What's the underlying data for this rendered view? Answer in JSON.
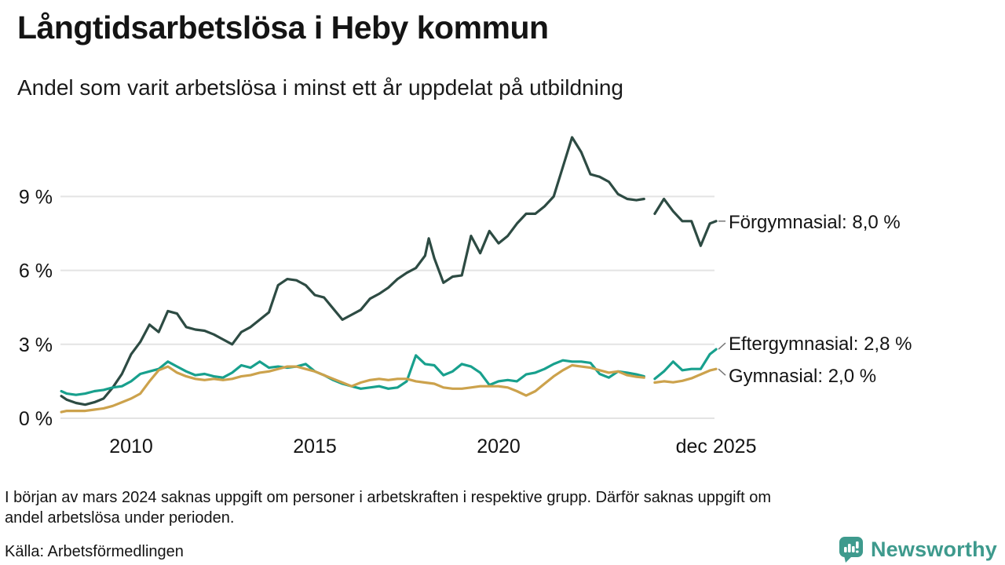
{
  "header": {
    "title": "Långtidsarbetslösa i Heby kommun",
    "subtitle": "Andel som varit arbetslösa i minst ett år uppdelat på utbildning"
  },
  "chart_data": {
    "type": "line",
    "title": "Långtidsarbetslösa i Heby kommun",
    "subtitle": "Andel som varit arbetslösa i minst ett år uppdelat på utbildning",
    "x_unit": "decimal_year",
    "xlim": [
      2008.0,
      2026.0
    ],
    "ylim": [
      0,
      12
    ],
    "grid": "horizontal",
    "legend_position": "right-end-labels",
    "y_ticks": [
      {
        "v": 0,
        "label": "0 %"
      },
      {
        "v": 3,
        "label": "3 %"
      },
      {
        "v": 6,
        "label": "6 %"
      },
      {
        "v": 9,
        "label": "9 %"
      }
    ],
    "x_ticks": [
      {
        "t": 2010,
        "label": "2010"
      },
      {
        "t": 2015,
        "label": "2015"
      },
      {
        "t": 2020,
        "label": "2020"
      },
      {
        "t": 2025.92,
        "label": "dec 2025"
      }
    ],
    "data_gap_note": "värden saknas kring början av 2024 (null-punkter)",
    "series": [
      {
        "name": "Förgymnasial",
        "end_label": "Förgymnasial: 8,0 %",
        "end_value_pct": 8.0,
        "color": "#2d4b43",
        "points": [
          [
            2008.1,
            0.9
          ],
          [
            2008.25,
            0.75
          ],
          [
            2008.5,
            0.62
          ],
          [
            2008.75,
            0.55
          ],
          [
            2009,
            0.65
          ],
          [
            2009.25,
            0.8
          ],
          [
            2009.5,
            1.25
          ],
          [
            2009.75,
            1.8
          ],
          [
            2010,
            2.6
          ],
          [
            2010.25,
            3.1
          ],
          [
            2010.5,
            3.8
          ],
          [
            2010.75,
            3.5
          ],
          [
            2011,
            4.35
          ],
          [
            2011.25,
            4.25
          ],
          [
            2011.5,
            3.7
          ],
          [
            2011.75,
            3.6
          ],
          [
            2012,
            3.55
          ],
          [
            2012.25,
            3.4
          ],
          [
            2012.5,
            3.2
          ],
          [
            2012.75,
            3.0
          ],
          [
            2013,
            3.5
          ],
          [
            2013.25,
            3.7
          ],
          [
            2013.5,
            4.0
          ],
          [
            2013.75,
            4.3
          ],
          [
            2014,
            5.4
          ],
          [
            2014.25,
            5.65
          ],
          [
            2014.5,
            5.6
          ],
          [
            2014.75,
            5.4
          ],
          [
            2015,
            5.0
          ],
          [
            2015.25,
            4.9
          ],
          [
            2015.5,
            4.45
          ],
          [
            2015.75,
            4.0
          ],
          [
            2016,
            4.2
          ],
          [
            2016.25,
            4.4
          ],
          [
            2016.5,
            4.85
          ],
          [
            2016.75,
            5.05
          ],
          [
            2017,
            5.3
          ],
          [
            2017.25,
            5.65
          ],
          [
            2017.5,
            5.9
          ],
          [
            2017.75,
            6.1
          ],
          [
            2018,
            6.6
          ],
          [
            2018.1,
            7.3
          ],
          [
            2018.25,
            6.5
          ],
          [
            2018.5,
            5.5
          ],
          [
            2018.75,
            5.75
          ],
          [
            2019,
            5.8
          ],
          [
            2019.25,
            7.4
          ],
          [
            2019.5,
            6.7
          ],
          [
            2019.75,
            7.6
          ],
          [
            2020,
            7.1
          ],
          [
            2020.25,
            7.4
          ],
          [
            2020.5,
            7.9
          ],
          [
            2020.75,
            8.3
          ],
          [
            2021,
            8.3
          ],
          [
            2021.25,
            8.6
          ],
          [
            2021.5,
            9.0
          ],
          [
            2021.75,
            10.2
          ],
          [
            2022,
            11.4
          ],
          [
            2022.25,
            10.8
          ],
          [
            2022.5,
            9.9
          ],
          [
            2022.75,
            9.8
          ],
          [
            2023,
            9.6
          ],
          [
            2023.25,
            9.1
          ],
          [
            2023.5,
            8.9
          ],
          [
            2023.75,
            8.85
          ],
          [
            2023.96,
            8.9
          ],
          [
            2024,
            null
          ],
          [
            2024.25,
            8.3
          ],
          [
            2024.5,
            8.9
          ],
          [
            2024.75,
            8.4
          ],
          [
            2025,
            8.0
          ],
          [
            2025.25,
            8.0
          ],
          [
            2025.5,
            7.0
          ],
          [
            2025.75,
            7.9
          ],
          [
            2025.92,
            8.0
          ]
        ]
      },
      {
        "name": "Eftergymnasial",
        "end_label": "Eftergymnasial: 2,8 %",
        "end_value_pct": 2.8,
        "color": "#18a08d",
        "points": [
          [
            2008.1,
            1.1
          ],
          [
            2008.25,
            1.0
          ],
          [
            2008.5,
            0.95
          ],
          [
            2008.75,
            1.0
          ],
          [
            2009,
            1.1
          ],
          [
            2009.25,
            1.15
          ],
          [
            2009.5,
            1.25
          ],
          [
            2009.75,
            1.3
          ],
          [
            2010,
            1.5
          ],
          [
            2010.25,
            1.8
          ],
          [
            2010.5,
            1.9
          ],
          [
            2010.75,
            2.0
          ],
          [
            2011,
            2.3
          ],
          [
            2011.25,
            2.1
          ],
          [
            2011.5,
            1.9
          ],
          [
            2011.75,
            1.75
          ],
          [
            2012,
            1.8
          ],
          [
            2012.25,
            1.7
          ],
          [
            2012.5,
            1.65
          ],
          [
            2012.75,
            1.85
          ],
          [
            2013,
            2.15
          ],
          [
            2013.25,
            2.05
          ],
          [
            2013.5,
            2.3
          ],
          [
            2013.75,
            2.05
          ],
          [
            2014,
            2.1
          ],
          [
            2014.25,
            2.05
          ],
          [
            2014.5,
            2.1
          ],
          [
            2014.75,
            2.2
          ],
          [
            2015,
            1.9
          ],
          [
            2015.25,
            1.75
          ],
          [
            2015.5,
            1.55
          ],
          [
            2015.75,
            1.4
          ],
          [
            2016,
            1.3
          ],
          [
            2016.25,
            1.2
          ],
          [
            2016.5,
            1.25
          ],
          [
            2016.75,
            1.3
          ],
          [
            2017,
            1.2
          ],
          [
            2017.25,
            1.25
          ],
          [
            2017.5,
            1.5
          ],
          [
            2017.75,
            2.55
          ],
          [
            2018,
            2.2
          ],
          [
            2018.25,
            2.15
          ],
          [
            2018.5,
            1.75
          ],
          [
            2018.75,
            1.9
          ],
          [
            2019,
            2.2
          ],
          [
            2019.25,
            2.1
          ],
          [
            2019.5,
            1.85
          ],
          [
            2019.75,
            1.35
          ],
          [
            2020,
            1.5
          ],
          [
            2020.25,
            1.55
          ],
          [
            2020.5,
            1.5
          ],
          [
            2020.75,
            1.78
          ],
          [
            2021,
            1.85
          ],
          [
            2021.25,
            2.0
          ],
          [
            2021.5,
            2.2
          ],
          [
            2021.75,
            2.35
          ],
          [
            2022,
            2.3
          ],
          [
            2022.25,
            2.3
          ],
          [
            2022.5,
            2.25
          ],
          [
            2022.75,
            1.8
          ],
          [
            2023,
            1.65
          ],
          [
            2023.25,
            1.9
          ],
          [
            2023.5,
            1.85
          ],
          [
            2023.75,
            1.78
          ],
          [
            2023.96,
            1.7
          ],
          [
            2024,
            null
          ],
          [
            2024.25,
            1.6
          ],
          [
            2024.5,
            1.9
          ],
          [
            2024.75,
            2.3
          ],
          [
            2025,
            1.95
          ],
          [
            2025.25,
            2.0
          ],
          [
            2025.5,
            2.0
          ],
          [
            2025.75,
            2.6
          ],
          [
            2025.92,
            2.8
          ]
        ]
      },
      {
        "name": "Gymnasial",
        "end_label": "Gymnasial: 2,0 %",
        "end_value_pct": 2.0,
        "color": "#cca24c",
        "points": [
          [
            2008.1,
            0.25
          ],
          [
            2008.25,
            0.3
          ],
          [
            2008.5,
            0.3
          ],
          [
            2008.75,
            0.3
          ],
          [
            2009,
            0.35
          ],
          [
            2009.25,
            0.4
          ],
          [
            2009.5,
            0.5
          ],
          [
            2009.75,
            0.65
          ],
          [
            2010,
            0.8
          ],
          [
            2010.25,
            1.0
          ],
          [
            2010.5,
            1.5
          ],
          [
            2010.75,
            1.95
          ],
          [
            2011,
            2.1
          ],
          [
            2011.25,
            1.85
          ],
          [
            2011.5,
            1.7
          ],
          [
            2011.75,
            1.6
          ],
          [
            2012,
            1.55
          ],
          [
            2012.25,
            1.6
          ],
          [
            2012.5,
            1.55
          ],
          [
            2012.75,
            1.6
          ],
          [
            2013,
            1.7
          ],
          [
            2013.25,
            1.75
          ],
          [
            2013.5,
            1.85
          ],
          [
            2013.75,
            1.9
          ],
          [
            2014,
            2.0
          ],
          [
            2014.25,
            2.1
          ],
          [
            2014.5,
            2.1
          ],
          [
            2014.75,
            2.0
          ],
          [
            2015,
            1.9
          ],
          [
            2015.25,
            1.75
          ],
          [
            2015.5,
            1.6
          ],
          [
            2015.75,
            1.45
          ],
          [
            2016,
            1.3
          ],
          [
            2016.25,
            1.45
          ],
          [
            2016.5,
            1.55
          ],
          [
            2016.75,
            1.6
          ],
          [
            2017,
            1.55
          ],
          [
            2017.25,
            1.6
          ],
          [
            2017.5,
            1.6
          ],
          [
            2017.75,
            1.5
          ],
          [
            2018,
            1.45
          ],
          [
            2018.25,
            1.4
          ],
          [
            2018.5,
            1.25
          ],
          [
            2018.75,
            1.2
          ],
          [
            2019,
            1.2
          ],
          [
            2019.25,
            1.25
          ],
          [
            2019.5,
            1.3
          ],
          [
            2019.75,
            1.3
          ],
          [
            2020,
            1.3
          ],
          [
            2020.25,
            1.25
          ],
          [
            2020.5,
            1.1
          ],
          [
            2020.75,
            0.92
          ],
          [
            2021,
            1.1
          ],
          [
            2021.25,
            1.4
          ],
          [
            2021.5,
            1.7
          ],
          [
            2021.75,
            1.95
          ],
          [
            2022,
            2.15
          ],
          [
            2022.25,
            2.1
          ],
          [
            2022.5,
            2.05
          ],
          [
            2022.75,
            1.95
          ],
          [
            2023,
            1.85
          ],
          [
            2023.25,
            1.9
          ],
          [
            2023.5,
            1.75
          ],
          [
            2023.75,
            1.68
          ],
          [
            2023.96,
            1.65
          ],
          [
            2024,
            null
          ],
          [
            2024.25,
            1.45
          ],
          [
            2024.5,
            1.5
          ],
          [
            2024.75,
            1.46
          ],
          [
            2025,
            1.52
          ],
          [
            2025.25,
            1.62
          ],
          [
            2025.5,
            1.78
          ],
          [
            2025.75,
            1.94
          ],
          [
            2025.92,
            2.0
          ]
        ]
      }
    ]
  },
  "footnote": {
    "lines": [
      "I början av mars 2024 saknas uppgift om personer i arbetskraften i respektive grupp. Därför saknas uppgift om",
      "andel arbetslösa under perioden."
    ]
  },
  "source": "Källa: Arbetsförmedlingen",
  "branding": {
    "name": "Newsworthy",
    "color": "#3e9a8d"
  }
}
